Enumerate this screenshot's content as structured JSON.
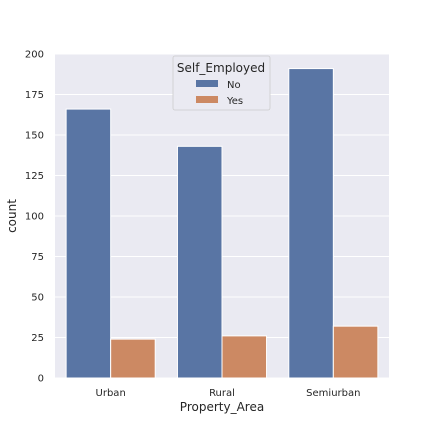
{
  "chart_data": {
    "type": "bar",
    "categories": [
      "Urban",
      "Rural",
      "Semiurban"
    ],
    "series": [
      {
        "name": "No",
        "values": [
          166,
          143,
          191
        ],
        "color": "#5975a4"
      },
      {
        "name": "Yes",
        "values": [
          24,
          26,
          32
        ],
        "color": "#cc8963"
      }
    ],
    "xlabel": "Property_Area",
    "ylabel": "count",
    "ylim": [
      0,
      200
    ],
    "yticks": [
      0,
      25,
      50,
      75,
      100,
      125,
      150,
      175,
      200
    ],
    "grid": true,
    "legend": {
      "title": "Self_Employed",
      "placement": "top-center"
    },
    "plot_background": "#eaeaf2"
  }
}
